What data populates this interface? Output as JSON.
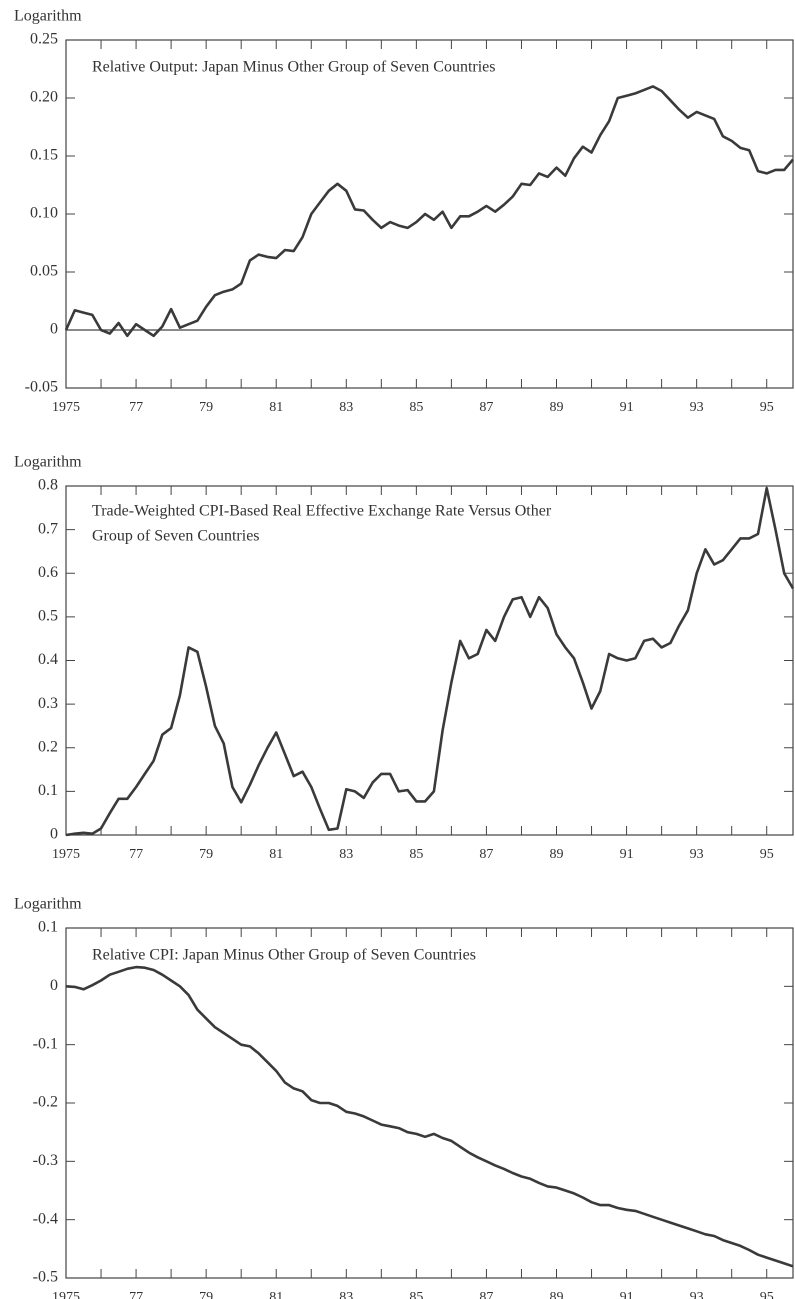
{
  "chart_data": [
    {
      "type": "line",
      "axis_title": "Logarithm",
      "title": "Relative Output: Japan Minus Other Group of Seven Countries",
      "color": "#3a3a3a",
      "zero_line": true,
      "xlim": [
        1975,
        1995.75
      ],
      "ylim": [
        -0.05,
        0.25
      ],
      "yticks": [
        -0.05,
        0,
        0.05,
        {
          "value": 0.1,
          "label": "0.10"
        },
        0.15,
        {
          "value": 0.2,
          "label": "0.20"
        },
        0.25
      ],
      "xticks": [
        {
          "value": 1975,
          "label": "1975"
        },
        {
          "value": 1977,
          "label": "77"
        },
        {
          "value": 1979,
          "label": "79"
        },
        {
          "value": 1981,
          "label": "81"
        },
        {
          "value": 1983,
          "label": "83"
        },
        {
          "value": 1985,
          "label": "85"
        },
        {
          "value": 1987,
          "label": "87"
        },
        {
          "value": 1989,
          "label": "89"
        },
        {
          "value": 1991,
          "label": "91"
        },
        {
          "value": 1993,
          "label": "93"
        },
        {
          "value": 1995,
          "label": "95"
        }
      ],
      "xminorticks": [
        1976,
        1978,
        1980,
        1982,
        1984,
        1986,
        1988,
        1990,
        1992,
        1994
      ],
      "x": [
        1975,
        1975.25,
        1975.5,
        1975.75,
        1976,
        1976.25,
        1976.5,
        1976.75,
        1977,
        1977.25,
        1977.5,
        1977.75,
        1978,
        1978.25,
        1978.5,
        1978.75,
        1979,
        1979.25,
        1979.5,
        1979.75,
        1980,
        1980.25,
        1980.5,
        1980.75,
        1981,
        1981.25,
        1981.5,
        1981.75,
        1982,
        1982.25,
        1982.5,
        1982.75,
        1983,
        1983.25,
        1983.5,
        1983.75,
        1984,
        1984.25,
        1984.5,
        1984.75,
        1985,
        1985.25,
        1985.5,
        1985.75,
        1986,
        1986.25,
        1986.5,
        1986.75,
        1987,
        1987.25,
        1987.5,
        1987.75,
        1988,
        1988.25,
        1988.5,
        1988.75,
        1989,
        1989.25,
        1989.5,
        1989.75,
        1990,
        1990.25,
        1990.5,
        1990.75,
        1991,
        1991.25,
        1991.5,
        1991.75,
        1992,
        1992.25,
        1992.5,
        1992.75,
        1993,
        1993.25,
        1993.5,
        1993.75,
        1994,
        1994.25,
        1994.5,
        1994.75,
        1995,
        1995.25,
        1995.5,
        1995.75
      ],
      "values": [
        0,
        0.017,
        0.015,
        0.013,
        0,
        -0.003,
        0.006,
        -0.005,
        0.005,
        0,
        -0.005,
        0.003,
        0.018,
        0.002,
        0.005,
        0.008,
        0.02,
        0.03,
        0.033,
        0.035,
        0.04,
        0.06,
        0.065,
        0.063,
        0.062,
        0.069,
        0.068,
        0.08,
        0.1,
        0.11,
        0.12,
        0.126,
        0.12,
        0.104,
        0.103,
        0.095,
        0.088,
        0.093,
        0.09,
        0.088,
        0.093,
        0.1,
        0.095,
        0.102,
        0.088,
        0.098,
        0.098,
        0.102,
        0.107,
        0.102,
        0.108,
        0.115,
        0.126,
        0.125,
        0.135,
        0.132,
        0.14,
        0.133,
        0.148,
        0.158,
        0.153,
        0.168,
        0.18,
        0.2,
        0.202,
        0.204,
        0.207,
        0.21,
        0.206,
        0.198,
        0.19,
        0.183,
        0.188,
        0.185,
        0.182,
        0.167,
        0.163,
        0.157,
        0.155,
        0.137,
        0.135,
        0.138,
        0.138,
        0.147
      ]
    },
    {
      "type": "line",
      "axis_title": "Logarithm",
      "title": [
        "Trade-Weighted CPI-Based Real Effective Exchange Rate Versus Other",
        "Group of Seven Countries"
      ],
      "color": "#3a3a3a",
      "xlim": [
        1975,
        1995.75
      ],
      "ylim": [
        0,
        0.8
      ],
      "yticks": [
        0,
        0.1,
        0.2,
        0.3,
        0.4,
        0.5,
        0.6,
        0.7,
        0.8
      ],
      "xticks": [
        {
          "value": 1975,
          "label": "1975"
        },
        {
          "value": 1977,
          "label": "77"
        },
        {
          "value": 1979,
          "label": "79"
        },
        {
          "value": 1981,
          "label": "81"
        },
        {
          "value": 1983,
          "label": "83"
        },
        {
          "value": 1985,
          "label": "85"
        },
        {
          "value": 1987,
          "label": "87"
        },
        {
          "value": 1989,
          "label": "89"
        },
        {
          "value": 1991,
          "label": "91"
        },
        {
          "value": 1993,
          "label": "93"
        },
        {
          "value": 1995,
          "label": "95"
        }
      ],
      "xminorticks": [
        1976,
        1978,
        1980,
        1982,
        1984,
        1986,
        1988,
        1990,
        1992,
        1994
      ],
      "x": [
        1975,
        1975.25,
        1975.5,
        1975.75,
        1976,
        1976.25,
        1976.5,
        1976.75,
        1977,
        1977.25,
        1977.5,
        1977.75,
        1978,
        1978.25,
        1978.5,
        1978.75,
        1979,
        1979.25,
        1979.5,
        1979.75,
        1980,
        1980.25,
        1980.5,
        1980.75,
        1981,
        1981.25,
        1981.5,
        1981.75,
        1982,
        1982.25,
        1982.5,
        1982.75,
        1983,
        1983.25,
        1983.5,
        1983.75,
        1984,
        1984.25,
        1984.5,
        1984.75,
        1985,
        1985.25,
        1985.5,
        1985.75,
        1986,
        1986.25,
        1986.5,
        1986.75,
        1987,
        1987.25,
        1987.5,
        1987.75,
        1988,
        1988.25,
        1988.5,
        1988.75,
        1989,
        1989.25,
        1989.5,
        1989.75,
        1990,
        1990.25,
        1990.5,
        1990.75,
        1991,
        1991.25,
        1991.5,
        1991.75,
        1992,
        1992.25,
        1992.5,
        1992.75,
        1993,
        1993.25,
        1993.5,
        1993.75,
        1994,
        1994.25,
        1994.5,
        1994.75,
        1995,
        1995.25,
        1995.5,
        1995.75
      ],
      "values": [
        0,
        0.003,
        0.005,
        0.003,
        0.015,
        0.05,
        0.083,
        0.083,
        0.11,
        0.14,
        0.17,
        0.23,
        0.245,
        0.32,
        0.43,
        0.42,
        0.34,
        0.25,
        0.21,
        0.11,
        0.075,
        0.115,
        0.16,
        0.2,
        0.235,
        0.185,
        0.135,
        0.145,
        0.11,
        0.06,
        0.012,
        0.015,
        0.105,
        0.1,
        0.085,
        0.12,
        0.14,
        0.14,
        0.1,
        0.103,
        0.077,
        0.077,
        0.1,
        0.24,
        0.35,
        0.445,
        0.405,
        0.415,
        0.47,
        0.445,
        0.5,
        0.54,
        0.545,
        0.5,
        0.545,
        0.52,
        0.46,
        0.43,
        0.405,
        0.35,
        0.29,
        0.33,
        0.415,
        0.405,
        0.4,
        0.405,
        0.445,
        0.45,
        0.43,
        0.44,
        0.48,
        0.515,
        0.6,
        0.655,
        0.62,
        0.63,
        0.655,
        0.68,
        0.68,
        0.69,
        0.795,
        0.7,
        0.6,
        0.565
      ]
    },
    {
      "type": "line",
      "axis_title": "Logarithm",
      "title": "Relative CPI: Japan Minus Other Group of Seven Countries",
      "color": "#3a3a3a",
      "xlim": [
        1975,
        1995.75
      ],
      "ylim": [
        -0.5,
        0.1
      ],
      "yticks": [
        -0.5,
        -0.4,
        -0.3,
        -0.2,
        -0.1,
        0,
        0.1
      ],
      "xticks": [
        {
          "value": 1975,
          "label": "1975"
        },
        {
          "value": 1977,
          "label": "77"
        },
        {
          "value": 1979,
          "label": "79"
        },
        {
          "value": 1981,
          "label": "81"
        },
        {
          "value": 1983,
          "label": "83"
        },
        {
          "value": 1985,
          "label": "85"
        },
        {
          "value": 1987,
          "label": "87"
        },
        {
          "value": 1989,
          "label": "89"
        },
        {
          "value": 1991,
          "label": "91"
        },
        {
          "value": 1993,
          "label": "93"
        },
        {
          "value": 1995,
          "label": "95"
        }
      ],
      "xminorticks": [
        1976,
        1978,
        1980,
        1982,
        1984,
        1986,
        1988,
        1990,
        1992,
        1994
      ],
      "x": [
        1975,
        1975.25,
        1975.5,
        1975.75,
        1976,
        1976.25,
        1976.5,
        1976.75,
        1977,
        1977.25,
        1977.5,
        1977.75,
        1978,
        1978.25,
        1978.5,
        1978.75,
        1979,
        1979.25,
        1979.5,
        1979.75,
        1980,
        1980.25,
        1980.5,
        1980.75,
        1981,
        1981.25,
        1981.5,
        1981.75,
        1982,
        1982.25,
        1982.5,
        1982.75,
        1983,
        1983.25,
        1983.5,
        1983.75,
        1984,
        1984.25,
        1984.5,
        1984.75,
        1985,
        1985.25,
        1985.5,
        1985.75,
        1986,
        1986.25,
        1986.5,
        1986.75,
        1987,
        1987.25,
        1987.5,
        1987.75,
        1988,
        1988.25,
        1988.5,
        1988.75,
        1989,
        1989.25,
        1989.5,
        1989.75,
        1990,
        1990.25,
        1990.5,
        1990.75,
        1991,
        1991.25,
        1991.5,
        1991.75,
        1992,
        1992.25,
        1992.5,
        1992.75,
        1993,
        1993.25,
        1993.5,
        1993.75,
        1994,
        1994.25,
        1994.5,
        1994.75,
        1995,
        1995.25,
        1995.5,
        1995.75
      ],
      "values": [
        0,
        -0.001,
        -0.005,
        0.002,
        0.01,
        0.02,
        0.025,
        0.03,
        0.033,
        0.032,
        0.028,
        0.02,
        0.01,
        0,
        -0.015,
        -0.04,
        -0.055,
        -0.07,
        -0.08,
        -0.09,
        -0.1,
        -0.103,
        -0.115,
        -0.13,
        -0.145,
        -0.165,
        -0.175,
        -0.18,
        -0.195,
        -0.2,
        -0.2,
        -0.205,
        -0.215,
        -0.218,
        -0.223,
        -0.23,
        -0.237,
        -0.24,
        -0.243,
        -0.25,
        -0.253,
        -0.258,
        -0.253,
        -0.26,
        -0.265,
        -0.275,
        -0.285,
        -0.293,
        -0.3,
        -0.307,
        -0.313,
        -0.32,
        -0.326,
        -0.33,
        -0.337,
        -0.343,
        -0.345,
        -0.35,
        -0.355,
        -0.362,
        -0.37,
        -0.375,
        -0.375,
        -0.38,
        -0.383,
        -0.385,
        -0.39,
        -0.395,
        -0.4,
        -0.405,
        -0.41,
        -0.415,
        -0.42,
        -0.425,
        -0.428,
        -0.435,
        -0.44,
        -0.445,
        -0.452,
        -0.46,
        -0.465,
        -0.47,
        -0.475,
        -0.48
      ]
    }
  ]
}
